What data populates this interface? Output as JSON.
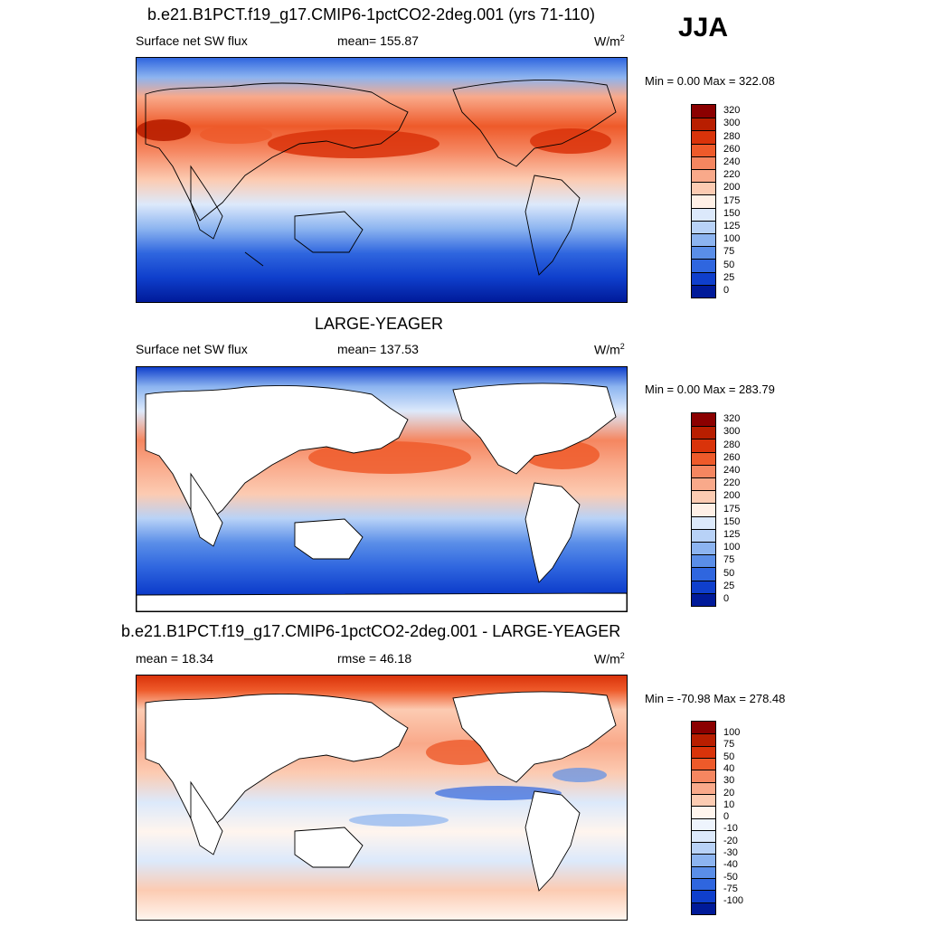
{
  "season": "JJA",
  "panels": [
    {
      "title": "b.e21.B1PCT.f19_g17.CMIP6-1pctCO2-2deg.001 (yrs 71-110)",
      "left_label": "Surface net SW flux",
      "center_label": "mean= 155.87",
      "unit": "W/m",
      "unit_sup": "2",
      "minmax": "Min =   0.00 Max = 322.08",
      "colorbar": {
        "labels": [
          "320",
          "300",
          "280",
          "260",
          "240",
          "220",
          "200",
          "175",
          "150",
          "125",
          "100",
          "75",
          "50",
          "25",
          "0"
        ],
        "colors": [
          "#8b0000",
          "#b81e00",
          "#d9330a",
          "#ee5a2a",
          "#f58660",
          "#f9a98a",
          "#fccbb2",
          "#fff0e6",
          "#dce9fb",
          "#b8d2f7",
          "#8cb4f0",
          "#5a8ee8",
          "#2f66df",
          "#0f3fcc",
          "#001a99"
        ]
      }
    },
    {
      "title": "LARGE-YEAGER",
      "left_label": "Surface net SW flux",
      "center_label": "mean= 137.53",
      "unit": "W/m",
      "unit_sup": "2",
      "minmax": "Min =   0.00 Max = 283.79",
      "colorbar": {
        "labels": [
          "320",
          "300",
          "280",
          "260",
          "240",
          "220",
          "200",
          "175",
          "150",
          "125",
          "100",
          "75",
          "50",
          "25",
          "0"
        ],
        "colors": [
          "#8b0000",
          "#b81e00",
          "#d9330a",
          "#ee5a2a",
          "#f58660",
          "#f9a98a",
          "#fccbb2",
          "#fff0e6",
          "#dce9fb",
          "#b8d2f7",
          "#8cb4f0",
          "#5a8ee8",
          "#2f66df",
          "#0f3fcc",
          "#001a99"
        ]
      }
    },
    {
      "title": "b.e21.B1PCT.f19_g17.CMIP6-1pctCO2-2deg.001 - LARGE-YEAGER",
      "left_label": "mean =  18.34",
      "center_label": "rmse =  46.18",
      "unit": "W/m",
      "unit_sup": "2",
      "minmax": "Min = -70.98 Max = 278.48",
      "colorbar": {
        "labels": [
          "100",
          "75",
          "50",
          "40",
          "30",
          "20",
          "10",
          "0",
          "-10",
          "-20",
          "-30",
          "-40",
          "-50",
          "-75",
          "-100"
        ],
        "colors": [
          "#8b0000",
          "#b81e00",
          "#d9330a",
          "#ee5a2a",
          "#f58660",
          "#f9a98a",
          "#fccbb2",
          "#fff5ee",
          "#eef4fd",
          "#dce9fb",
          "#b8d2f7",
          "#8cb4f0",
          "#5a8ee8",
          "#2f66df",
          "#0f3fcc",
          "#001a99"
        ]
      }
    }
  ]
}
